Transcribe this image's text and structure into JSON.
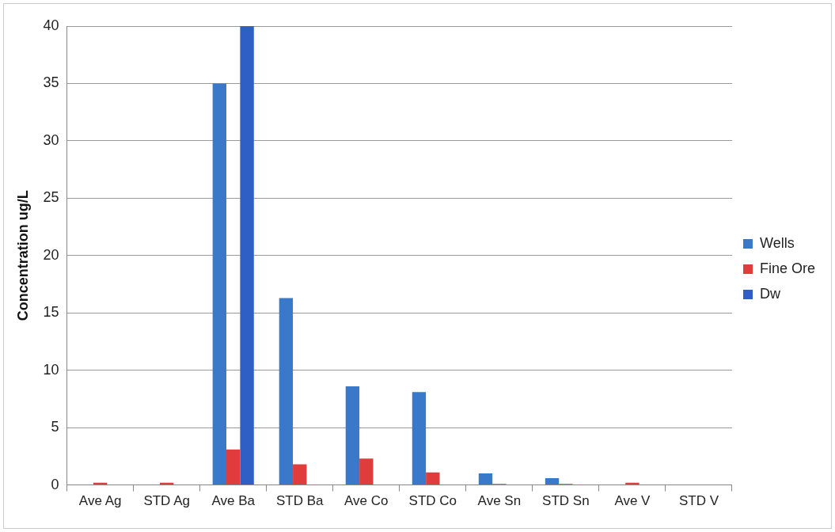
{
  "chart_data": {
    "type": "bar",
    "ylabel": "Concentration ug/L",
    "categories": [
      "Ave Ag",
      "STD Ag",
      "Ave Ba",
      "STD Ba",
      "Ave Co",
      "STD Co",
      "Ave Sn",
      "STD Sn",
      "Ave V",
      "STD V"
    ],
    "series": [
      {
        "name": "Wells",
        "color": "#3a78c9",
        "values": [
          0,
          0,
          35,
          16.3,
          8.6,
          8.1,
          1.0,
          0.6,
          0,
          0
        ]
      },
      {
        "name": "Fine Ore",
        "color": "#e03c3c",
        "values": [
          0.2,
          0.2,
          3.1,
          1.8,
          2.3,
          1.1,
          0.1,
          0.1,
          0.2,
          0
        ]
      },
      {
        "name": "Dw",
        "color": "#2f5ec4",
        "values": [
          null,
          null,
          40,
          null,
          null,
          null,
          null,
          null,
          null,
          null
        ]
      }
    ],
    "ylim": [
      0,
      40
    ],
    "yticks": [
      0,
      5,
      10,
      15,
      20,
      25,
      30,
      35,
      40
    ],
    "grid": "y",
    "legend": "right"
  }
}
